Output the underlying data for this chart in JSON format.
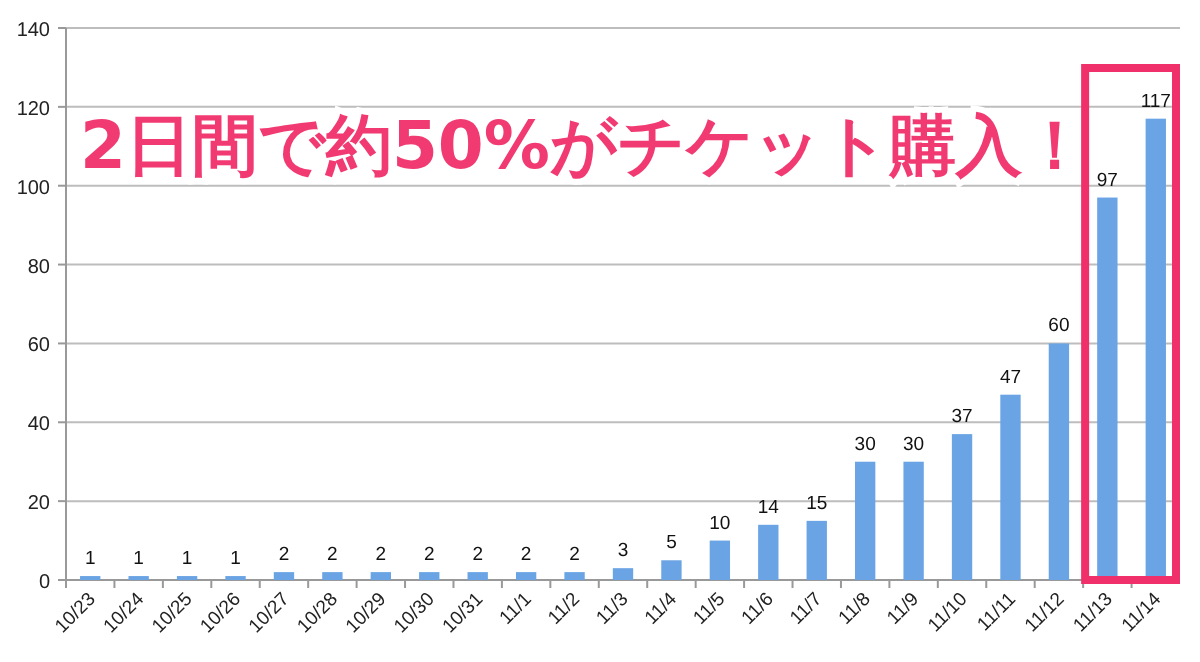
{
  "chart_data": {
    "type": "bar",
    "categories": [
      "10/23",
      "10/24",
      "10/25",
      "10/26",
      "10/27",
      "10/28",
      "10/29",
      "10/30",
      "10/31",
      "11/1",
      "11/2",
      "11/3",
      "11/4",
      "11/5",
      "11/6",
      "11/7",
      "11/8",
      "11/9",
      "11/10",
      "11/11",
      "11/12",
      "11/13",
      "11/14"
    ],
    "values": [
      1,
      1,
      1,
      1,
      2,
      2,
      2,
      2,
      2,
      2,
      2,
      3,
      5,
      10,
      14,
      15,
      30,
      30,
      37,
      47,
      60,
      97,
      117
    ],
    "color": "#6aa4e4",
    "ylim": [
      0,
      140
    ],
    "yticks": [
      0,
      20,
      40,
      60,
      80,
      100,
      120,
      140
    ],
    "grid": "y",
    "data_labels": true,
    "annotations": [
      "2日間で約50%がチケット購入！"
    ]
  }
}
